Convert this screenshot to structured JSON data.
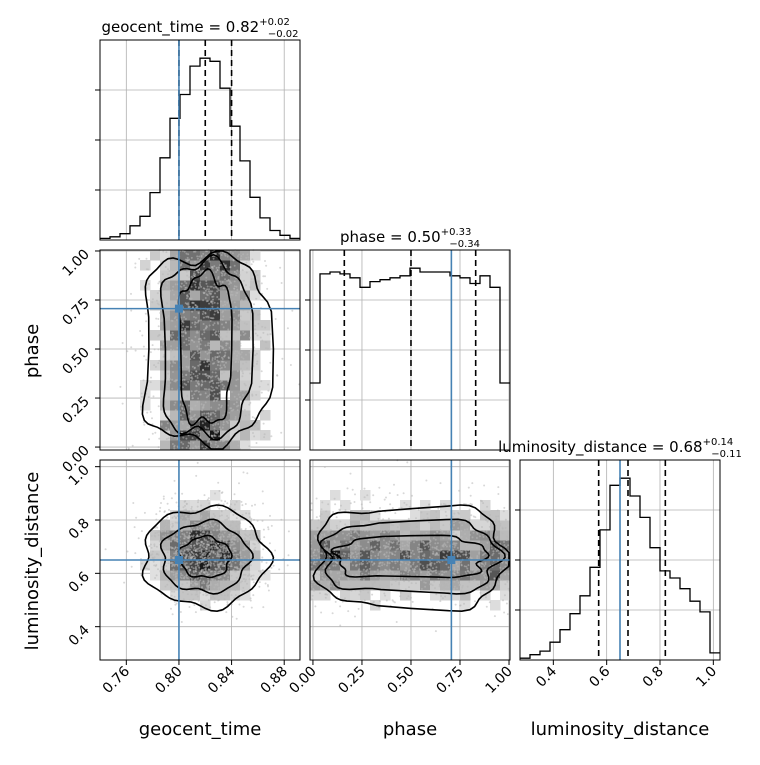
{
  "chart_data": {
    "type": "corner",
    "parameters": [
      "geocent_time",
      "phase",
      "luminosity_distance"
    ],
    "axis_labels": {
      "geocent_time": "geocent_time",
      "phase": "phase",
      "luminosity_distance": "luminosity_distance"
    },
    "titles": {
      "geocent_time": {
        "name": "geocent_time",
        "median": "0.82",
        "plus": "+0.02",
        "minus": "−0.02"
      },
      "phase": {
        "name": "phase",
        "median": "0.50",
        "plus": "+0.33",
        "minus": "−0.34"
      },
      "luminosity_distance": {
        "name": "luminosity_distance",
        "median": "0.68",
        "plus": "+0.14",
        "minus": "−0.11"
      }
    },
    "ranges": {
      "geocent_time": [
        0.74,
        0.892
      ],
      "phase": [
        -0.015,
        1.005
      ],
      "luminosity_distance": [
        0.275,
        1.025
      ]
    },
    "ticks": {
      "geocent_time": [
        "0.76",
        "0.80",
        "0.84",
        "0.88"
      ],
      "phase": [
        "0.00",
        "0.25",
        "0.50",
        "0.75",
        "1.00"
      ],
      "luminosity_distance": [
        "0.4",
        "0.6",
        "0.8",
        "1.0"
      ]
    },
    "truths": {
      "geocent_time": 0.8,
      "phase": 0.706,
      "luminosity_distance": 0.65
    },
    "quantiles": {
      "geocent_time": [
        0.8,
        0.82,
        0.84
      ],
      "phase": [
        0.16,
        0.5,
        0.83
      ],
      "luminosity_distance": [
        0.57,
        0.68,
        0.82
      ]
    },
    "histograms": {
      "geocent_time": {
        "bins": [
          0.74,
          0.7476,
          0.7552,
          0.7628,
          0.7704,
          0.778,
          0.7856,
          0.7932,
          0.8008,
          0.8084,
          0.816,
          0.8236,
          0.8312,
          0.8388,
          0.8464,
          0.854,
          0.8616,
          0.8692,
          0.8768,
          0.8844,
          0.892
        ],
        "counts": [
          1,
          2,
          4,
          9,
          15,
          30,
          52,
          77,
          92,
          110,
          115,
          113,
          96,
          72,
          50,
          27,
          14,
          6,
          3,
          1
        ]
      },
      "phase": {
        "bins": [
          -0.015,
          0.036,
          0.087,
          0.138,
          0.189,
          0.24,
          0.291,
          0.342,
          0.393,
          0.444,
          0.495,
          0.546,
          0.597,
          0.648,
          0.699,
          0.75,
          0.801,
          0.852,
          0.903,
          0.954,
          1.005
        ],
        "counts": [
          35,
          92,
          93,
          92,
          90,
          85,
          88,
          89,
          90,
          91,
          95,
          93,
          93,
          93,
          91,
          90,
          87,
          91,
          85,
          35
        ]
      },
      "luminosity_distance": {
        "bins": [
          0.275,
          0.3125,
          0.35,
          0.3875,
          0.425,
          0.4625,
          0.5,
          0.5375,
          0.575,
          0.6125,
          0.65,
          0.6875,
          0.725,
          0.7625,
          0.8,
          0.8375,
          0.875,
          0.9125,
          0.95,
          0.9875,
          1.025
        ],
        "counts": [
          1,
          3,
          5,
          10,
          17,
          26,
          36,
          52,
          73,
          98,
          102,
          92,
          80,
          63,
          50,
          46,
          40,
          33,
          27,
          4
        ]
      }
    },
    "grid": true
  }
}
